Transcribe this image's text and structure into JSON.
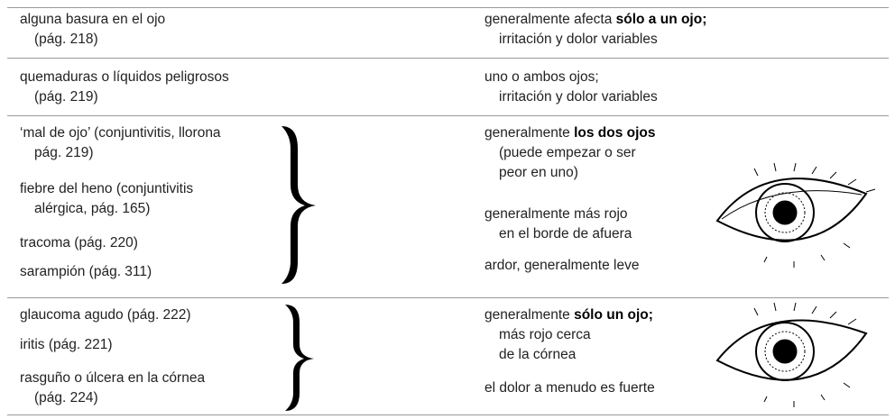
{
  "rows": [
    {
      "left": [
        {
          "lines": [
            "alguna basura en el ojo",
            "(pág. 218)"
          ]
        }
      ],
      "right": [
        {
          "lines": [
            {
              "plain": "generalmente afecta ",
              "bold": "sólo a un ojo;"
            },
            "irritación y dolor variables"
          ]
        }
      ]
    },
    {
      "left": [
        {
          "lines": [
            "quemaduras o líquidos peligrosos",
            "(pág. 219)"
          ]
        }
      ],
      "right": [
        {
          "lines": [
            "uno o ambos ojos;",
            "irritación y dolor variables"
          ]
        }
      ]
    },
    {
      "left": [
        {
          "lines": [
            "‘mal de ojo’ (conjuntivitis, llorona",
            "pág. 219)"
          ]
        },
        {
          "lines": [
            "fiebre del heno (conjuntivitis",
            "alérgica, pág. 165)"
          ]
        },
        {
          "lines": [
            "tracoma (pág. 220)"
          ]
        },
        {
          "lines": [
            "sarampión (pág. 311)"
          ]
        }
      ],
      "right": [
        {
          "lines": [
            {
              "plain": "generalmente ",
              "bold": "los dos ojos"
            },
            "(puede empezar o ser",
            "peor en uno)"
          ]
        },
        {
          "lines": [
            "generalmente más rojo",
            "en el borde de afuera"
          ]
        },
        {
          "lines": [
            "ardor, generalmente leve"
          ]
        }
      ]
    },
    {
      "left": [
        {
          "lines": [
            "glaucoma agudo (pág. 222)"
          ]
        },
        {
          "lines": [
            "iritis (pág. 221)"
          ]
        },
        {
          "lines": [
            "rasguño o úlcera en la córnea",
            "(pág. 224)"
          ]
        }
      ],
      "right": [
        {
          "lines": [
            {
              "plain": "generalmente ",
              "bold": "sólo un ojo;"
            },
            "más rojo cerca",
            "de la córnea"
          ]
        },
        {
          "lines": [
            "el dolor a menudo es fuerte"
          ]
        }
      ]
    }
  ]
}
